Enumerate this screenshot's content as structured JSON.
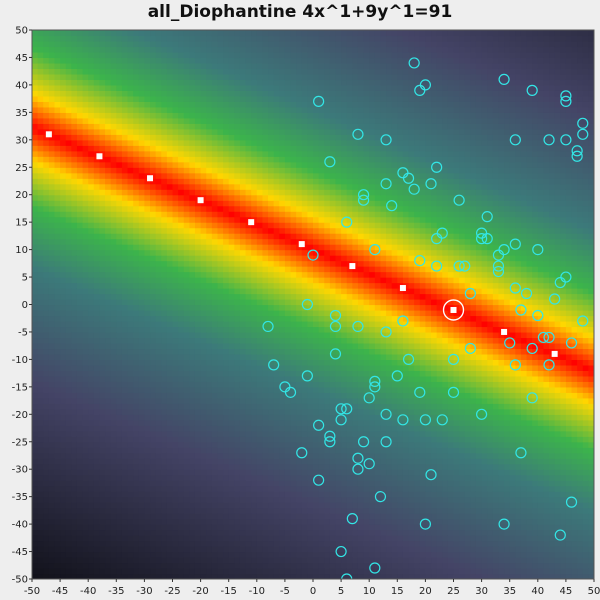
{
  "chart_data": {
    "type": "scatter",
    "title": "all_Diophantine 4x^1+9y^1=91",
    "xlim": [
      -50,
      50
    ],
    "ylim": [
      -50,
      50
    ],
    "x_ticks": [
      -50,
      -45,
      -40,
      -35,
      -30,
      -25,
      -20,
      -15,
      -10,
      -5,
      0,
      5,
      10,
      15,
      20,
      25,
      30,
      35,
      40,
      45,
      50
    ],
    "y_ticks": [
      -50,
      -45,
      -40,
      -35,
      -30,
      -25,
      -20,
      -15,
      -10,
      -5,
      0,
      5,
      10,
      15,
      20,
      25,
      30,
      35,
      40,
      45,
      50
    ],
    "background": {
      "type": "heatmap",
      "function": "|4x+9y-91|",
      "colors": [
        "#ff0000",
        "#ffd700",
        "#3cb44b",
        "#3c7a7a",
        "#444466",
        "#000000"
      ]
    },
    "solutions": [
      {
        "x": -47,
        "y": 31
      },
      {
        "x": -38,
        "y": 27
      },
      {
        "x": -29,
        "y": 23
      },
      {
        "x": -20,
        "y": 19
      },
      {
        "x": -11,
        "y": 15
      },
      {
        "x": -2,
        "y": 11
      },
      {
        "x": 7,
        "y": 7
      },
      {
        "x": 16,
        "y": 3
      },
      {
        "x": 25,
        "y": -1
      },
      {
        "x": 34,
        "y": -5
      },
      {
        "x": 43,
        "y": -9
      }
    ],
    "highlight": {
      "x": 25,
      "y": -1
    },
    "samples": [
      [
        18,
        44
      ],
      [
        20,
        40
      ],
      [
        19,
        39
      ],
      [
        34,
        41
      ],
      [
        39,
        39
      ],
      [
        45,
        38
      ],
      [
        45,
        37
      ],
      [
        1,
        37
      ],
      [
        8,
        31
      ],
      [
        13,
        30
      ],
      [
        36,
        30
      ],
      [
        42,
        30
      ],
      [
        45,
        30
      ],
      [
        48,
        33
      ],
      [
        48,
        31
      ],
      [
        47,
        28
      ],
      [
        47,
        27
      ],
      [
        3,
        26
      ],
      [
        22,
        25
      ],
      [
        16,
        24
      ],
      [
        17,
        23
      ],
      [
        13,
        22
      ],
      [
        18,
        21
      ],
      [
        21,
        22
      ],
      [
        9,
        20
      ],
      [
        9,
        19
      ],
      [
        26,
        19
      ],
      [
        14,
        18
      ],
      [
        6,
        15
      ],
      [
        31,
        16
      ],
      [
        23,
        13
      ],
      [
        30,
        13
      ],
      [
        22,
        12
      ],
      [
        31,
        12
      ],
      [
        30,
        12
      ],
      [
        36,
        11
      ],
      [
        11,
        10
      ],
      [
        34,
        10
      ],
      [
        40,
        10
      ],
      [
        33,
        9
      ],
      [
        0,
        9
      ],
      [
        19,
        8
      ],
      [
        22,
        7
      ],
      [
        26,
        7
      ],
      [
        27,
        7
      ],
      [
        33,
        7
      ],
      [
        33,
        6
      ],
      [
        45,
        5
      ],
      [
        44,
        4
      ],
      [
        36,
        3
      ],
      [
        38,
        2
      ],
      [
        28,
        2
      ],
      [
        43,
        1
      ],
      [
        -1,
        0
      ],
      [
        37,
        -1
      ],
      [
        40,
        -2
      ],
      [
        48,
        -3
      ],
      [
        4,
        -2
      ],
      [
        16,
        -3
      ],
      [
        -8,
        -4
      ],
      [
        4,
        -4
      ],
      [
        8,
        -4
      ],
      [
        13,
        -5
      ],
      [
        35,
        -7
      ],
      [
        46,
        -7
      ],
      [
        28,
        -8
      ],
      [
        39,
        -8
      ],
      [
        41,
        -6
      ],
      [
        42,
        -6
      ],
      [
        4,
        -9
      ],
      [
        17,
        -10
      ],
      [
        25,
        -10
      ],
      [
        -7,
        -11
      ],
      [
        36,
        -11
      ],
      [
        42,
        -11
      ],
      [
        -1,
        -13
      ],
      [
        15,
        -13
      ],
      [
        11,
        -14
      ],
      [
        11,
        -15
      ],
      [
        -5,
        -15
      ],
      [
        -4,
        -16
      ],
      [
        19,
        -16
      ],
      [
        25,
        -16
      ],
      [
        10,
        -17
      ],
      [
        39,
        -17
      ],
      [
        5,
        -19
      ],
      [
        6,
        -19
      ],
      [
        5,
        -21
      ],
      [
        13,
        -20
      ],
      [
        30,
        -20
      ],
      [
        16,
        -21
      ],
      [
        20,
        -21
      ],
      [
        23,
        -21
      ],
      [
        1,
        -22
      ],
      [
        3,
        -24
      ],
      [
        3,
        -25
      ],
      [
        9,
        -25
      ],
      [
        13,
        -25
      ],
      [
        -2,
        -27
      ],
      [
        37,
        -27
      ],
      [
        8,
        -28
      ],
      [
        10,
        -29
      ],
      [
        21,
        -31
      ],
      [
        8,
        -30
      ],
      [
        1,
        -32
      ],
      [
        12,
        -35
      ],
      [
        46,
        -36
      ],
      [
        7,
        -39
      ],
      [
        20,
        -40
      ],
      [
        34,
        -40
      ],
      [
        44,
        -42
      ],
      [
        5,
        -45
      ],
      [
        6,
        -50
      ],
      [
        11,
        -48
      ]
    ]
  }
}
